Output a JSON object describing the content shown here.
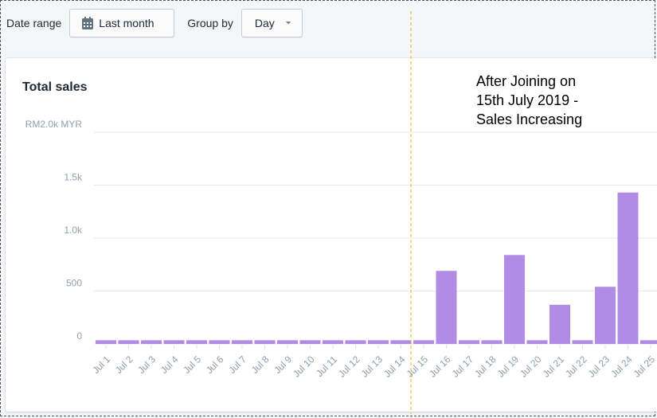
{
  "toolbar": {
    "date_range_label": "Date range",
    "date_range_value": "Last month",
    "group_by_label": "Group by",
    "group_by_value": "Day"
  },
  "card": {
    "title": "Total sales"
  },
  "annotation": {
    "text_lines": [
      "After Joining on",
      "15th July 2019 -",
      "Sales Increasing"
    ],
    "marker_category": "Jul 15",
    "line_color": "#f5a623"
  },
  "chart_data": {
    "type": "bar",
    "title": "Total sales",
    "ylim": [
      0,
      2000
    ],
    "y_ticks": [
      {
        "value": 0,
        "label": "0"
      },
      {
        "value": 500,
        "label": "500"
      },
      {
        "value": 1000,
        "label": "1.0k"
      },
      {
        "value": 1500,
        "label": "1.5k"
      },
      {
        "value": 2000,
        "label": "RM2.0k MYR"
      }
    ],
    "grid": true,
    "bar_color": "#b18be6",
    "categories": [
      "Jul 1",
      "Jul 2",
      "Jul 3",
      "Jul 4",
      "Jul 5",
      "Jul 6",
      "Jul 7",
      "Jul 8",
      "Jul 9",
      "Jul 10",
      "Jul 11",
      "Jul 12",
      "Jul 13",
      "Jul 14",
      "Jul 15",
      "Jul 16",
      "Jul 17",
      "Jul 18",
      "Jul 19",
      "Jul 20",
      "Jul 21",
      "Jul 22",
      "Jul 23",
      "Jul 24",
      "Jul 25"
    ],
    "values": [
      35,
      35,
      35,
      35,
      35,
      35,
      35,
      35,
      35,
      35,
      35,
      35,
      35,
      35,
      35,
      690,
      35,
      35,
      840,
      35,
      370,
      35,
      540,
      1430,
      35
    ]
  }
}
